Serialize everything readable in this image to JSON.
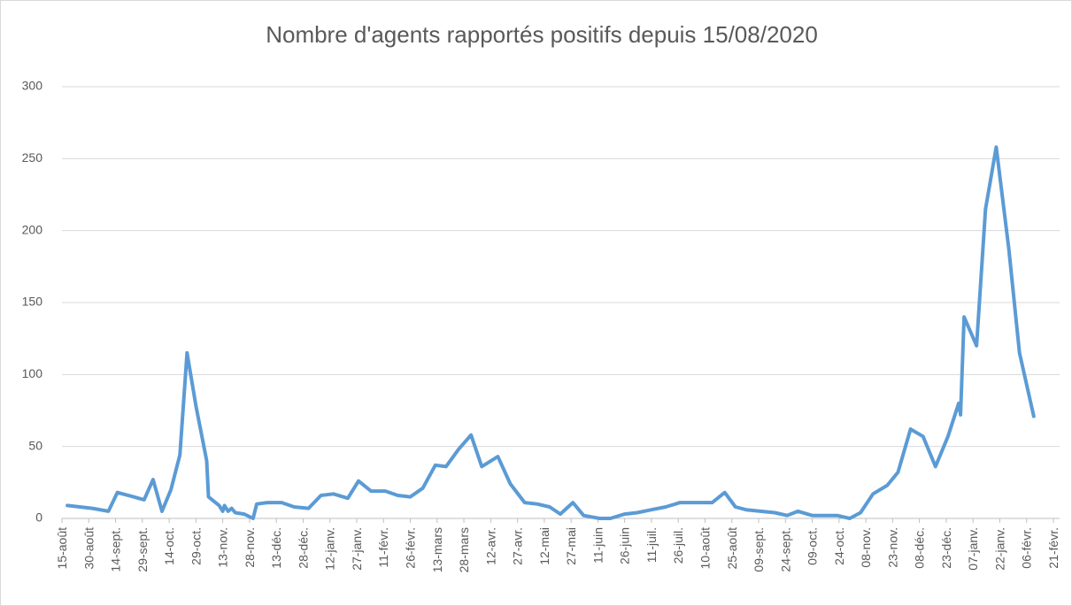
{
  "chart_data": {
    "type": "line",
    "title": "Nombre d'agents rapportés positifs depuis 15/08/2020",
    "x": [
      3,
      17,
      26,
      31,
      40,
      46,
      51,
      56,
      61,
      66,
      70,
      75,
      81,
      82,
      88,
      90,
      91,
      93,
      95,
      97,
      102,
      107,
      109,
      115,
      123,
      130,
      138,
      145,
      152,
      160,
      166,
      173,
      181,
      188,
      195,
      202,
      209,
      215,
      222,
      229,
      235,
      244,
      251,
      259,
      266,
      273,
      279,
      286,
      292,
      301,
      307,
      315,
      322,
      330,
      338,
      346,
      354,
      364,
      371,
      377,
      383,
      391,
      399,
      406,
      412,
      420,
      428,
      434,
      441,
      447,
      454,
      462,
      468,
      475,
      482,
      489,
      496,
      502,
      503,
      505,
      512,
      517,
      523,
      530,
      536,
      544
    ],
    "values": [
      9,
      7,
      5,
      18,
      15,
      13,
      27,
      5,
      20,
      44,
      115,
      78,
      40,
      15,
      9,
      5,
      9,
      5,
      7,
      4,
      3,
      0,
      10,
      11,
      11,
      8,
      7,
      16,
      17,
      14,
      26,
      19,
      19,
      16,
      15,
      21,
      37,
      36,
      48,
      58,
      36,
      43,
      24,
      11,
      10,
      8,
      3,
      11,
      2,
      0,
      0,
      3,
      4,
      6,
      8,
      11,
      11,
      11,
      18,
      8,
      6,
      5,
      4,
      2,
      5,
      2,
      2,
      2,
      0,
      4,
      17,
      23,
      32,
      62,
      57,
      36,
      57,
      80,
      72,
      140,
      120,
      215,
      258,
      188,
      115,
      71
    ],
    "color": "#5b9bd5",
    "xlim": [
      0,
      555
    ],
    "xticks": [
      {
        "value": 0,
        "label": "15-août"
      },
      {
        "value": 15,
        "label": "30-août"
      },
      {
        "value": 30,
        "label": "14-sept."
      },
      {
        "value": 45,
        "label": "29-sept."
      },
      {
        "value": 60,
        "label": "14-oct."
      },
      {
        "value": 75,
        "label": "29-oct."
      },
      {
        "value": 90,
        "label": "13-nov."
      },
      {
        "value": 105,
        "label": "28-nov."
      },
      {
        "value": 120,
        "label": "13-déc."
      },
      {
        "value": 135,
        "label": "28-déc."
      },
      {
        "value": 150,
        "label": "12-janv."
      },
      {
        "value": 165,
        "label": "27-janv."
      },
      {
        "value": 180,
        "label": "11-févr."
      },
      {
        "value": 195,
        "label": "26-févr."
      },
      {
        "value": 210,
        "label": "13-mars"
      },
      {
        "value": 225,
        "label": "28-mars"
      },
      {
        "value": 240,
        "label": "12-avr."
      },
      {
        "value": 255,
        "label": "27-avr."
      },
      {
        "value": 270,
        "label": "12-mai"
      },
      {
        "value": 285,
        "label": "27-mai"
      },
      {
        "value": 300,
        "label": "11-juin"
      },
      {
        "value": 315,
        "label": "26-juin"
      },
      {
        "value": 330,
        "label": "11-juil."
      },
      {
        "value": 345,
        "label": "26-juil."
      },
      {
        "value": 360,
        "label": "10-août"
      },
      {
        "value": 375,
        "label": "25-août"
      },
      {
        "value": 390,
        "label": "09-sept."
      },
      {
        "value": 405,
        "label": "24-sept."
      },
      {
        "value": 420,
        "label": "09-oct."
      },
      {
        "value": 435,
        "label": "24-oct."
      },
      {
        "value": 450,
        "label": "08-nov."
      },
      {
        "value": 465,
        "label": "23-nov."
      },
      {
        "value": 480,
        "label": "08-déc."
      },
      {
        "value": 495,
        "label": "23-déc."
      },
      {
        "value": 510,
        "label": "07-janv."
      },
      {
        "value": 525,
        "label": "22-janv."
      },
      {
        "value": 540,
        "label": "06-févr."
      },
      {
        "value": 555,
        "label": "21-févr."
      }
    ],
    "ylim": [
      0,
      300
    ],
    "yticks": [
      0,
      50,
      100,
      150,
      200,
      250,
      300
    ],
    "grid": true
  }
}
